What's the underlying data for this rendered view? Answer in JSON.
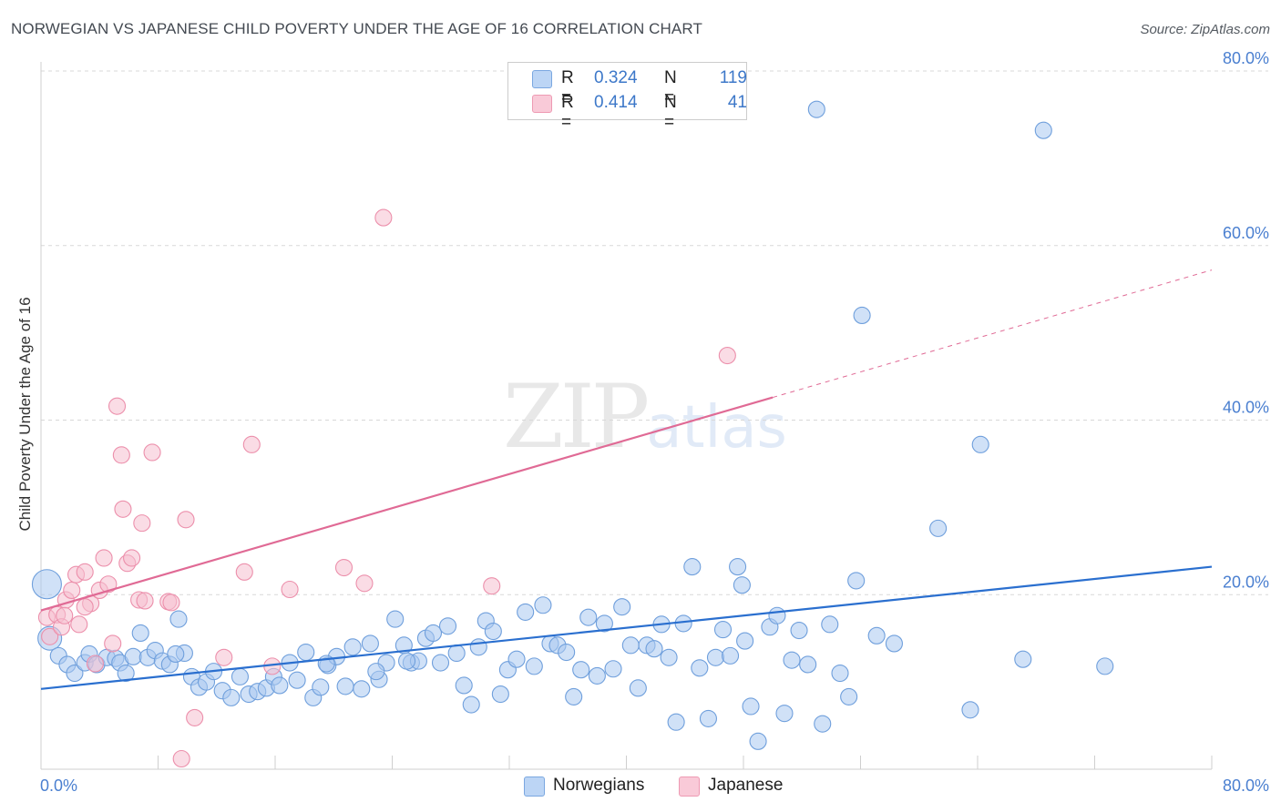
{
  "title": "NORWEGIAN VS JAPANESE CHILD POVERTY UNDER THE AGE OF 16 CORRELATION CHART",
  "source": "Source: ZipAtlas.com",
  "watermark": {
    "zip": "ZIP",
    "atlas": "atlas"
  },
  "colors": {
    "blue_fill": "#a9c8f0",
    "blue_stroke": "#6f9fdc",
    "blue_line": "#2a6fcf",
    "pink_fill": "#f6bfd0",
    "pink_stroke": "#ec8fab",
    "pink_line": "#e06a95",
    "grid": "#d8d8d8",
    "tick_text": "#4a7fd0"
  },
  "legend": {
    "rows": [
      {
        "series": "Norwegians",
        "r_label": "R =",
        "r_value": "0.324",
        "n_label": "N =",
        "n_value": "119"
      },
      {
        "series": "Japanese",
        "r_label": "R =",
        "r_value": "0.414",
        "n_label": "N =",
        "n_value": "41"
      }
    ]
  },
  "bottom_legend": {
    "norwegians": "Norwegians",
    "japanese": "Japanese"
  },
  "chart_data": {
    "type": "scatter",
    "title": "NORWEGIAN VS JAPANESE CHILD POVERTY UNDER THE AGE OF 16 CORRELATION CHART",
    "xlabel": "",
    "ylabel": "Child Poverty Under the Age of 16",
    "xlim": [
      0,
      80
    ],
    "ylim": [
      0,
      80
    ],
    "x_tick_labels": [
      "0.0%",
      "80.0%"
    ],
    "y_tick_labels": [
      "20.0%",
      "40.0%",
      "60.0%",
      "80.0%"
    ],
    "y_ticks": [
      20,
      40,
      60,
      80
    ],
    "grid": true,
    "legend_position": "top-center",
    "series": [
      {
        "name": "Norwegians",
        "R": 0.324,
        "N": 119,
        "trend": {
          "x": [
            0,
            80
          ],
          "y": [
            9.2,
            23.2
          ],
          "dashed_extension": false
        },
        "points": [
          [
            0.4,
            21.2
          ],
          [
            0.6,
            15.0
          ],
          [
            1.2,
            13.0
          ],
          [
            1.8,
            12.0
          ],
          [
            2.3,
            11.0
          ],
          [
            3.0,
            12.2
          ],
          [
            3.3,
            13.2
          ],
          [
            3.8,
            12.0
          ],
          [
            4.5,
            12.8
          ],
          [
            5.1,
            12.7
          ],
          [
            5.4,
            12.2
          ],
          [
            5.8,
            11.0
          ],
          [
            6.3,
            12.9
          ],
          [
            6.8,
            15.6
          ],
          [
            7.3,
            12.8
          ],
          [
            7.8,
            13.6
          ],
          [
            8.3,
            12.4
          ],
          [
            8.8,
            12.0
          ],
          [
            9.4,
            17.2
          ],
          [
            9.8,
            13.3
          ],
          [
            10.3,
            10.6
          ],
          [
            10.8,
            9.4
          ],
          [
            11.3,
            10.0
          ],
          [
            11.8,
            11.2
          ],
          [
            12.4,
            9.0
          ],
          [
            13.0,
            8.2
          ],
          [
            13.6,
            10.6
          ],
          [
            14.2,
            8.6
          ],
          [
            14.8,
            8.9
          ],
          [
            15.4,
            9.3
          ],
          [
            15.9,
            10.6
          ],
          [
            16.3,
            9.6
          ],
          [
            17.0,
            12.2
          ],
          [
            17.5,
            10.2
          ],
          [
            18.1,
            13.4
          ],
          [
            18.6,
            8.2
          ],
          [
            19.1,
            9.4
          ],
          [
            19.6,
            11.9
          ],
          [
            20.2,
            12.9
          ],
          [
            20.8,
            9.5
          ],
          [
            21.3,
            14.0
          ],
          [
            21.9,
            9.2
          ],
          [
            22.5,
            14.4
          ],
          [
            23.1,
            10.3
          ],
          [
            23.6,
            12.2
          ],
          [
            24.2,
            17.2
          ],
          [
            24.8,
            14.2
          ],
          [
            25.3,
            12.2
          ],
          [
            25.8,
            12.4
          ],
          [
            26.3,
            15.0
          ],
          [
            26.8,
            15.6
          ],
          [
            27.3,
            12.2
          ],
          [
            27.8,
            16.4
          ],
          [
            28.4,
            13.3
          ],
          [
            28.9,
            9.6
          ],
          [
            29.4,
            7.4
          ],
          [
            29.9,
            14.0
          ],
          [
            30.4,
            17.0
          ],
          [
            30.9,
            15.8
          ],
          [
            31.4,
            8.6
          ],
          [
            31.9,
            11.4
          ],
          [
            32.5,
            12.6
          ],
          [
            33.1,
            18.0
          ],
          [
            33.7,
            11.8
          ],
          [
            34.3,
            18.8
          ],
          [
            34.8,
            14.4
          ],
          [
            35.3,
            14.2
          ],
          [
            35.9,
            13.4
          ],
          [
            36.4,
            8.3
          ],
          [
            36.9,
            11.4
          ],
          [
            37.4,
            17.4
          ],
          [
            38.0,
            10.7
          ],
          [
            38.5,
            16.7
          ],
          [
            39.1,
            11.5
          ],
          [
            39.7,
            18.6
          ],
          [
            40.3,
            14.2
          ],
          [
            40.8,
            9.3
          ],
          [
            41.4,
            14.2
          ],
          [
            41.9,
            13.8
          ],
          [
            42.4,
            16.6
          ],
          [
            42.9,
            12.8
          ],
          [
            43.4,
            5.4
          ],
          [
            43.9,
            16.7
          ],
          [
            44.5,
            23.2
          ],
          [
            45.0,
            11.6
          ],
          [
            45.6,
            5.8
          ],
          [
            46.1,
            12.8
          ],
          [
            46.6,
            16.0
          ],
          [
            47.1,
            13.0
          ],
          [
            47.6,
            23.2
          ],
          [
            47.9,
            21.1
          ],
          [
            48.1,
            14.7
          ],
          [
            48.5,
            7.2
          ],
          [
            49.0,
            3.2
          ],
          [
            49.8,
            16.3
          ],
          [
            50.3,
            17.6
          ],
          [
            50.8,
            6.4
          ],
          [
            51.3,
            12.5
          ],
          [
            51.8,
            15.9
          ],
          [
            52.4,
            12.0
          ],
          [
            53.0,
            75.6
          ],
          [
            53.4,
            5.2
          ],
          [
            53.9,
            16.6
          ],
          [
            54.6,
            11.0
          ],
          [
            55.2,
            8.3
          ],
          [
            55.7,
            21.6
          ],
          [
            56.1,
            52.0
          ],
          [
            57.1,
            15.3
          ],
          [
            58.3,
            14.4
          ],
          [
            61.3,
            27.6
          ],
          [
            63.5,
            6.8
          ],
          [
            64.2,
            37.2
          ],
          [
            68.5,
            73.2
          ],
          [
            67.1,
            12.6
          ],
          [
            72.7,
            11.8
          ],
          [
            25.0,
            12.4
          ],
          [
            19.5,
            12.1
          ],
          [
            9.2,
            13.2
          ],
          [
            22.9,
            11.2
          ]
        ]
      },
      {
        "name": "Japanese",
        "R": 0.414,
        "N": 41,
        "trend": {
          "x": [
            0,
            50
          ],
          "y": [
            18.2,
            42.6
          ],
          "dashed_extension_to": [
            80,
            57.2
          ]
        },
        "points": [
          [
            0.4,
            17.4
          ],
          [
            0.6,
            15.2
          ],
          [
            1.1,
            17.7
          ],
          [
            1.4,
            16.3
          ],
          [
            1.7,
            19.4
          ],
          [
            2.1,
            20.5
          ],
          [
            2.4,
            22.3
          ],
          [
            2.6,
            16.6
          ],
          [
            3.0,
            22.6
          ],
          [
            3.4,
            19.0
          ],
          [
            3.7,
            12.1
          ],
          [
            4.0,
            20.5
          ],
          [
            4.3,
            24.2
          ],
          [
            4.6,
            21.2
          ],
          [
            4.9,
            14.4
          ],
          [
            5.2,
            41.6
          ],
          [
            5.5,
            36.0
          ],
          [
            5.6,
            29.8
          ],
          [
            5.9,
            23.6
          ],
          [
            6.2,
            24.2
          ],
          [
            6.7,
            19.4
          ],
          [
            6.9,
            28.2
          ],
          [
            7.1,
            19.3
          ],
          [
            7.6,
            36.3
          ],
          [
            8.7,
            19.2
          ],
          [
            8.9,
            19.1
          ],
          [
            9.6,
            1.2
          ],
          [
            9.9,
            28.6
          ],
          [
            10.5,
            5.9
          ],
          [
            12.5,
            12.8
          ],
          [
            13.9,
            22.6
          ],
          [
            14.4,
            37.2
          ],
          [
            15.8,
            11.8
          ],
          [
            17.0,
            20.6
          ],
          [
            20.7,
            23.1
          ],
          [
            22.1,
            21.3
          ],
          [
            23.4,
            63.2
          ],
          [
            30.8,
            21.0
          ],
          [
            46.9,
            47.4
          ],
          [
            3.0,
            18.6
          ],
          [
            1.6,
            17.6
          ]
        ]
      }
    ]
  },
  "axis": {
    "ylabel": "Child Poverty Under the Age of 16"
  }
}
